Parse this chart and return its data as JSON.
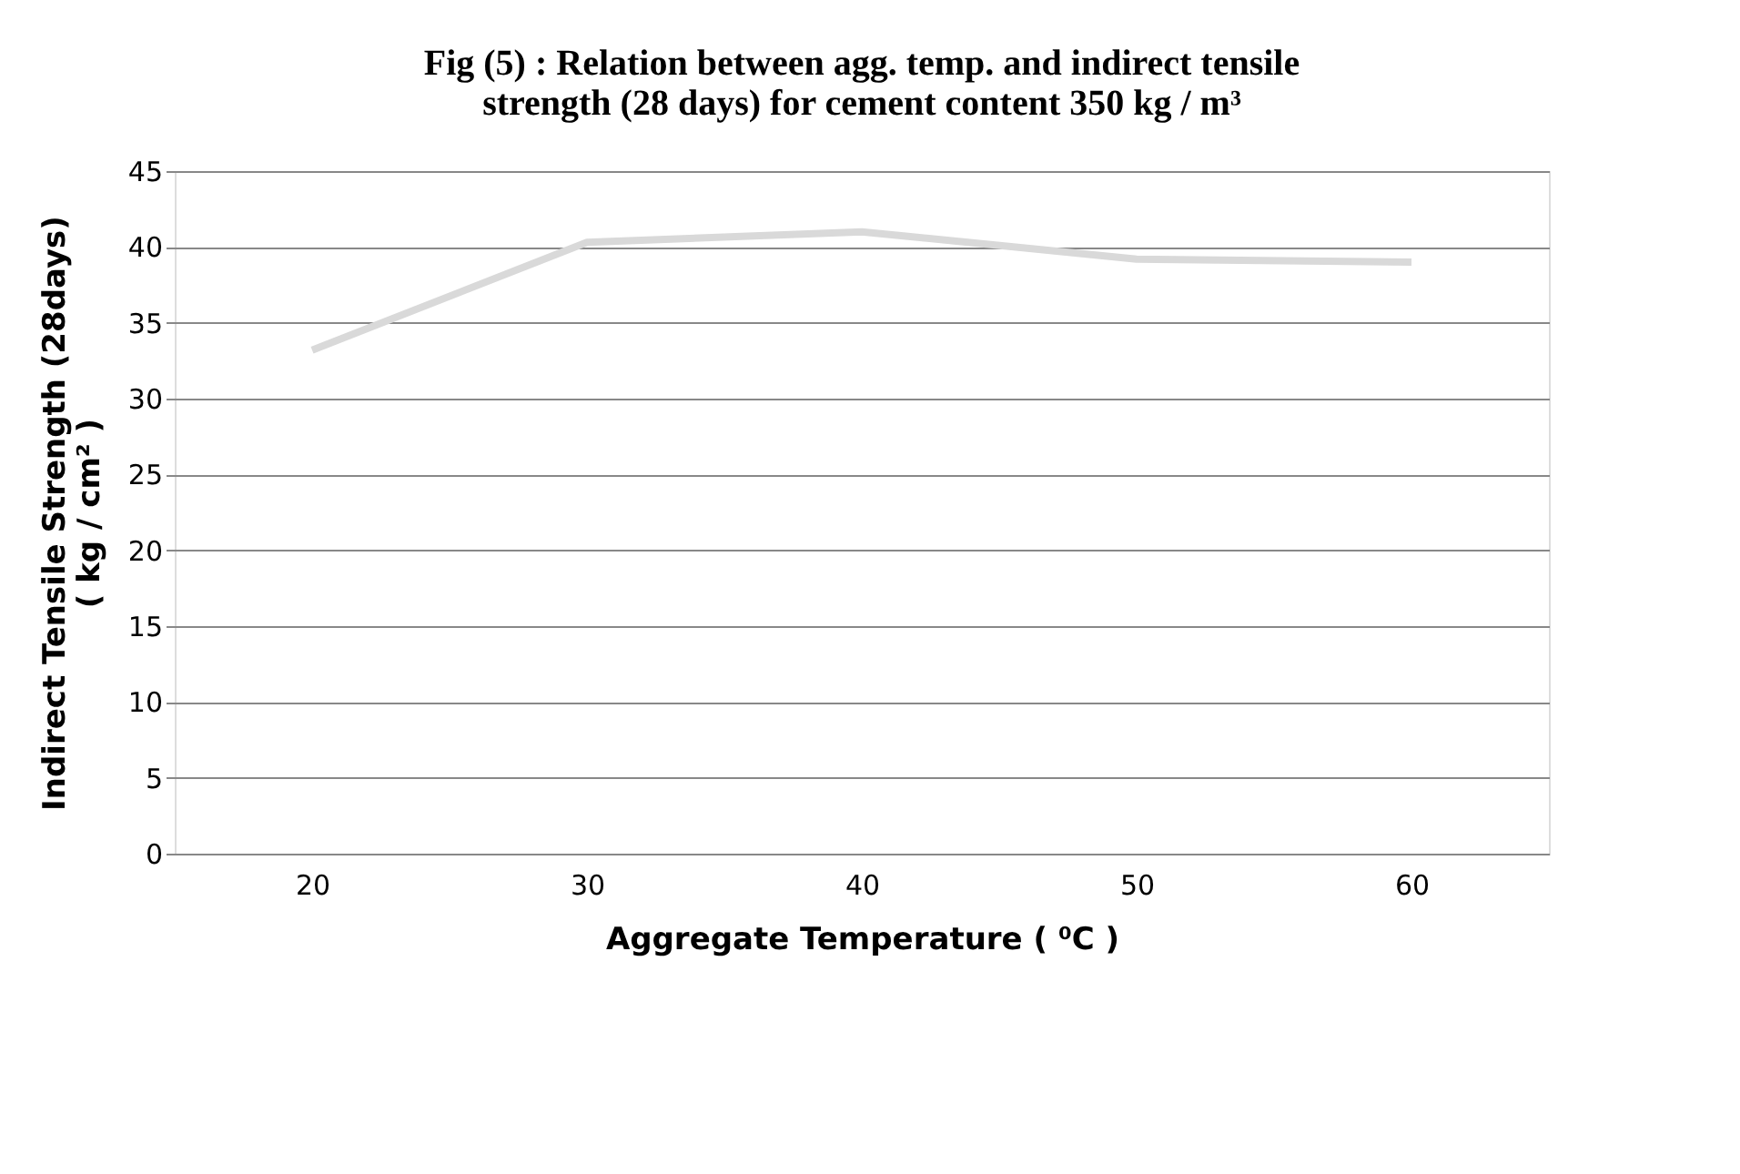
{
  "chart_data": {
    "type": "line",
    "title": "Fig (5) : Relation between agg. temp. and indirect tensile\nstrength (28 days) for cement content  350 kg / m³",
    "xlabel": "Aggregate Temperature ( ⁰C )",
    "ylabel": "Indirect Tensile  Strength (28days)\n( kg / cm² )",
    "categories": [
      "20",
      "30",
      "40",
      "50",
      "60"
    ],
    "series": [
      {
        "color": "#d9d9d9",
        "values": [
          33.2,
          40.3,
          41.0,
          39.2,
          39.0
        ]
      }
    ],
    "ylim": [
      0,
      45
    ],
    "yticks": [
      0,
      5,
      10,
      15,
      20,
      25,
      30,
      35,
      40,
      45
    ],
    "grid": "y",
    "legend": false,
    "marker": "none",
    "line_style": "solid"
  }
}
